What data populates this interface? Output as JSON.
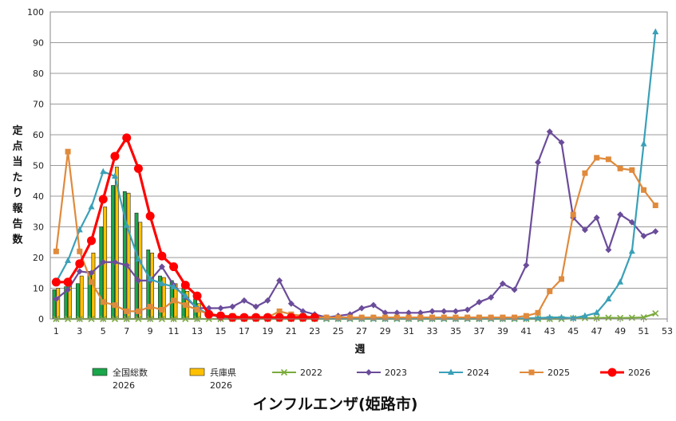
{
  "chart_data": {
    "type": "bar+line",
    "title": "インフルエンザ(姫路市)",
    "xlabel": "週",
    "ylabel": "定点当たり報告数",
    "ylim": [
      0,
      100
    ],
    "yticks": [
      0,
      10,
      20,
      30,
      40,
      50,
      60,
      70,
      80,
      90,
      100
    ],
    "xlim": [
      0.5,
      53
    ],
    "xticks": [
      1,
      3,
      5,
      7,
      9,
      11,
      13,
      15,
      17,
      19,
      21,
      23,
      25,
      27,
      29,
      31,
      33,
      35,
      37,
      39,
      41,
      43,
      45,
      47,
      49,
      51,
      53
    ],
    "grid": true,
    "legend_position": "bottom",
    "bars": [
      {
        "name": "全国総数\n2026",
        "color": "#1aa64a",
        "x": [
          1,
          2,
          3,
          4,
          5,
          6,
          7,
          8,
          9,
          10,
          11,
          12,
          13
        ],
        "values": [
          9.5,
          10.5,
          11.5,
          15.5,
          30,
          43.5,
          41.5,
          34.5,
          22.5,
          14,
          12.5,
          10,
          6.5
        ]
      },
      {
        "name": "兵庫県\n2026",
        "color": "#ffc000",
        "x": [
          1,
          2,
          3,
          4,
          5,
          6,
          7,
          8,
          9,
          10,
          11,
          12,
          13
        ],
        "values": [
          10,
          11.5,
          14,
          21.5,
          36.5,
          49.5,
          41,
          31.5,
          21.5,
          13.5,
          11.5,
          9,
          5
        ]
      }
    ],
    "series": [
      {
        "name": "2022",
        "color": "#7aab3b",
        "marker": "x",
        "x": [
          1,
          2,
          3,
          4,
          5,
          6,
          7,
          8,
          9,
          10,
          11,
          12,
          13,
          14,
          15,
          16,
          17,
          18,
          19,
          20,
          21,
          22,
          23,
          24,
          25,
          26,
          27,
          28,
          29,
          30,
          31,
          32,
          33,
          34,
          35,
          36,
          37,
          38,
          39,
          40,
          41,
          42,
          43,
          44,
          45,
          46,
          47,
          48,
          49,
          50,
          51,
          52
        ],
        "values": [
          0,
          0,
          0,
          0,
          0,
          0,
          0,
          0,
          0,
          0,
          0,
          0,
          0,
          0,
          0,
          0,
          0,
          0,
          0,
          0,
          0,
          0,
          0,
          0,
          0,
          0,
          0,
          0,
          0,
          0,
          0,
          0,
          0,
          0,
          0,
          0,
          0,
          0,
          0,
          0,
          0,
          0,
          0,
          0,
          0.2,
          0.3,
          0.3,
          0.4,
          0.3,
          0.4,
          0.5,
          1.8
        ]
      },
      {
        "name": "2023",
        "color": "#6b4c9a",
        "marker": "diamond",
        "x": [
          1,
          2,
          3,
          4,
          5,
          6,
          7,
          8,
          9,
          10,
          11,
          12,
          13,
          14,
          15,
          16,
          17,
          18,
          19,
          20,
          21,
          22,
          23,
          24,
          25,
          26,
          27,
          28,
          29,
          30,
          31,
          32,
          33,
          34,
          35,
          36,
          37,
          38,
          39,
          40,
          41,
          42,
          43,
          44,
          45,
          46,
          47,
          48,
          49,
          50,
          51,
          52
        ],
        "values": [
          6.5,
          9.5,
          15.5,
          15,
          18.5,
          18.5,
          17.5,
          12.5,
          12.5,
          17,
          11,
          7,
          3.5,
          3.5,
          3.5,
          4,
          6,
          4,
          6,
          12.5,
          5,
          2.5,
          1.5,
          0.5,
          1,
          1.5,
          3.5,
          4.5,
          2,
          2,
          2,
          2,
          2.5,
          2.5,
          2.5,
          3,
          5.5,
          7,
          11.5,
          9.5,
          17.5,
          51,
          61,
          57.5,
          33,
          29,
          33,
          22.5,
          34,
          31.5,
          27,
          28.5
        ]
      },
      {
        "name": "2024",
        "color": "#3aa0b8",
        "marker": "triangle",
        "x": [
          1,
          2,
          3,
          4,
          5,
          6,
          7,
          8,
          9,
          10,
          11,
          12,
          13,
          14,
          15,
          16,
          17,
          18,
          19,
          20,
          21,
          22,
          23,
          24,
          25,
          26,
          27,
          28,
          29,
          30,
          31,
          32,
          33,
          34,
          35,
          36,
          37,
          38,
          39,
          40,
          41,
          42,
          43,
          44,
          45,
          46,
          47,
          48,
          49,
          50,
          51,
          52
        ],
        "values": [
          12,
          19,
          29,
          36.5,
          48,
          46.5,
          30.5,
          19.5,
          13,
          11.5,
          10.5,
          7.5,
          3.5,
          1.5,
          0.5,
          0.5,
          0.5,
          0.2,
          0.2,
          0.2,
          0.2,
          0.2,
          0.2,
          0.1,
          0.1,
          0.1,
          0.1,
          0.1,
          0.1,
          0.1,
          0.1,
          0.1,
          0.1,
          0.1,
          0.1,
          0.1,
          0.1,
          0.1,
          0.1,
          0.1,
          0.2,
          0.3,
          0.5,
          0.5,
          0.3,
          1,
          2,
          6.5,
          12,
          22,
          57,
          93.5
        ]
      },
      {
        "name": "2025",
        "color": "#e08a3c",
        "marker": "square",
        "x": [
          1,
          2,
          3,
          4,
          5,
          6,
          7,
          8,
          9,
          10,
          11,
          12,
          13,
          14,
          15,
          16,
          17,
          18,
          19,
          20,
          21,
          22,
          23,
          24,
          25,
          26,
          27,
          28,
          29,
          30,
          31,
          32,
          33,
          34,
          35,
          36,
          37,
          38,
          39,
          40,
          41,
          42,
          43,
          44,
          45,
          46,
          47,
          48,
          49,
          50,
          51,
          52
        ],
        "values": [
          22,
          54.5,
          22,
          12,
          5.5,
          4.5,
          2.5,
          2.5,
          4,
          3,
          6,
          4.5,
          3,
          1.5,
          1,
          1,
          0.5,
          0.5,
          0.5,
          2.5,
          1.5,
          1,
          0.5,
          0.5,
          0.5,
          0.5,
          0.5,
          0.5,
          0.5,
          0.5,
          0.5,
          0.5,
          0.5,
          0.5,
          0.5,
          0.5,
          0.5,
          0.5,
          0.5,
          0.5,
          1,
          2,
          9,
          13,
          34,
          47.5,
          52.5,
          52,
          49,
          48.5,
          42,
          37
        ]
      },
      {
        "name": "2026",
        "color": "#ff0000",
        "marker": "circle",
        "x": [
          1,
          2,
          3,
          4,
          5,
          6,
          7,
          8,
          9,
          10,
          11,
          12,
          13,
          14,
          15,
          16,
          17,
          18,
          19,
          20,
          21,
          22,
          23
        ],
        "values": [
          12,
          12,
          18,
          25.5,
          39,
          53,
          59,
          49,
          33.5,
          20.5,
          17,
          11,
          7.5,
          1.5,
          1,
          0.5,
          0.5,
          0.5,
          0.5,
          0.5,
          0.5,
          0.5,
          0.5
        ]
      }
    ]
  }
}
